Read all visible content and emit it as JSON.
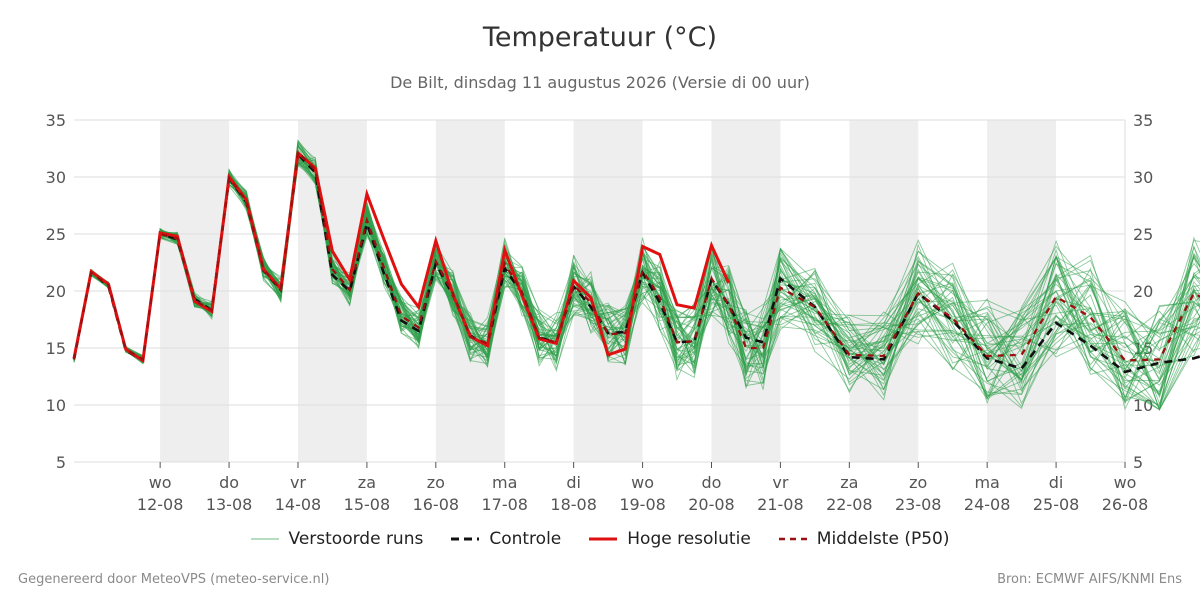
{
  "title": "Temperatuur (°C)",
  "subtitle": "De Bilt, dinsdag 11 augustus 2026 (Versie di 00 uur)",
  "footer_left": "Gegenereerd door MeteoVPS (meteo-service.nl)",
  "footer_right": "Bron: ECMWF AIFS/KNMI Ens",
  "colors": {
    "ensemble": "#2e9e48",
    "control": "#111111",
    "highres": "#e01010",
    "median": "#9b1010",
    "band": "#eeeeee",
    "grid": "#dddddd"
  },
  "chart_data": {
    "type": "line",
    "title": "Temperatuur (°C)",
    "ylim": [
      5,
      35
    ],
    "yticks": [
      5,
      10,
      15,
      20,
      25,
      30,
      35
    ],
    "xlim_days": [
      -1.25,
      14
    ],
    "x_ticks": [
      {
        "day": "wo",
        "date": "12-08"
      },
      {
        "day": "do",
        "date": "13-08"
      },
      {
        "day": "vr",
        "date": "14-08"
      },
      {
        "day": "za",
        "date": "15-08"
      },
      {
        "day": "zo",
        "date": "16-08"
      },
      {
        "day": "ma",
        "date": "17-08"
      },
      {
        "day": "di",
        "date": "18-08"
      },
      {
        "day": "wo",
        "date": "19-08"
      },
      {
        "day": "do",
        "date": "20-08"
      },
      {
        "day": "vr",
        "date": "21-08"
      },
      {
        "day": "za",
        "date": "22-08"
      },
      {
        "day": "zo",
        "date": "23-08"
      },
      {
        "day": "ma",
        "date": "24-08"
      },
      {
        "day": "di",
        "date": "25-08"
      },
      {
        "day": "wo",
        "date": "26-08"
      }
    ],
    "shaded_days": [
      0,
      2,
      4,
      6,
      8,
      10,
      12
    ],
    "grid": true,
    "legend_position": "bottom",
    "hoge_resolutie": [
      14.1,
      21.7,
      20.6,
      14.9,
      13.9,
      25.1,
      24.8,
      19.1,
      18.2,
      30.0,
      28.0,
      21.9,
      20.2,
      32.1,
      30.8,
      23.5,
      21.0,
      28.5,
      24.5,
      20.6,
      18.6,
      24.4,
      19.7,
      16.0,
      15.2,
      23.6,
      19.6,
      15.8,
      15.4,
      20.9,
      19.4,
      14.4,
      14.9,
      23.9,
      23.2,
      18.8,
      18.5,
      24.0,
      20.7
    ],
    "controle": [
      14.0,
      21.7,
      20.4,
      14.8,
      13.9,
      25.1,
      24.5,
      19.3,
      18.3,
      29.9,
      27.8,
      21.8,
      20.1,
      32.0,
      30.4,
      21.4,
      20.0,
      25.9,
      21.5,
      17.4,
      16.5,
      22.4,
      19.6,
      16.1,
      15.2,
      22.0,
      19.8,
      15.9,
      15.5,
      20.4,
      18.6,
      16.3,
      16.4,
      21.6,
      19.0,
      15.5,
      15.6,
      21.0,
      18.8,
      15.9,
      15.5,
      21.1,
      18.6,
      14.2,
      14.0,
      19.8,
      17.4,
      14.1,
      13.2,
      17.2,
      15.2,
      12.9,
      13.7,
      14.1,
      15.0,
      12.6,
      13.6,
      18.0,
      15.6,
      12.4
    ],
    "middelste_p50": [
      14.0,
      21.6,
      20.5,
      14.9,
      14.0,
      25.0,
      24.6,
      19.2,
      18.3,
      29.9,
      27.9,
      21.9,
      20.1,
      32.2,
      30.6,
      21.9,
      20.1,
      26.2,
      22.0,
      17.8,
      16.8,
      22.6,
      19.8,
      16.0,
      15.4,
      22.4,
      19.9,
      15.9,
      15.5,
      20.5,
      19.0,
      16.2,
      16.3,
      21.8,
      19.4,
      15.5,
      15.6,
      21.1,
      18.8,
      15.0,
      15.0,
      20.3,
      18.6,
      14.4,
      14.3,
      19.8,
      17.6,
      14.3,
      14.4,
      19.5,
      17.7,
      13.9,
      14.0,
      19.8,
      18.2,
      14.7,
      14.5,
      19.6,
      17.3,
      14.9
    ],
    "series_names": [
      "Verstoorde runs",
      "Controle",
      "Hoge resolutie",
      "Middelste (P50)"
    ]
  },
  "legend": [
    {
      "key": "ensemble",
      "label": "Verstoorde runs"
    },
    {
      "key": "control",
      "label": "Controle"
    },
    {
      "key": "highres",
      "label": "Hoge resolutie"
    },
    {
      "key": "median",
      "label": "Middelste (P50)"
    }
  ]
}
